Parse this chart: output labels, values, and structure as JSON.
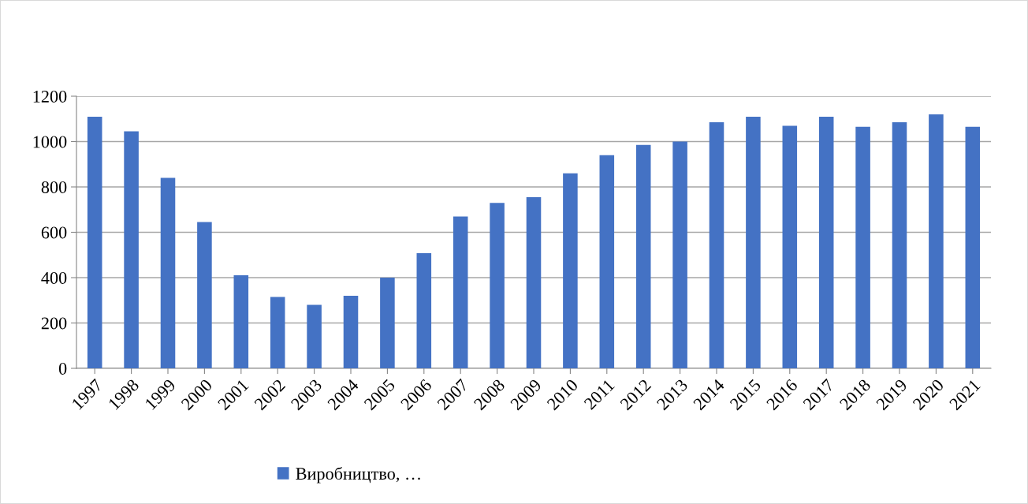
{
  "chart_data": {
    "type": "bar",
    "categories": [
      "1997",
      "1998",
      "1999",
      "2000",
      "2001",
      "2002",
      "2003",
      "2004",
      "2005",
      "2006",
      "2007",
      "2008",
      "2009",
      "2010",
      "2011",
      "2012",
      "2013",
      "2014",
      "2015",
      "2016",
      "2017",
      "2018",
      "2019",
      "2020",
      "2021"
    ],
    "series": [
      {
        "name": "Виробництво, …",
        "color": "#4472c4",
        "values": [
          1110,
          1045,
          840,
          645,
          410,
          315,
          280,
          320,
          400,
          508,
          670,
          730,
          755,
          860,
          940,
          985,
          1000,
          1085,
          1110,
          1070,
          1110,
          1065,
          1085,
          1120,
          1065
        ]
      }
    ],
    "ylim": [
      0,
      1200
    ],
    "yticks": [
      0,
      200,
      400,
      600,
      800,
      1000,
      1200
    ],
    "grid": "y",
    "legend": "bottom"
  }
}
